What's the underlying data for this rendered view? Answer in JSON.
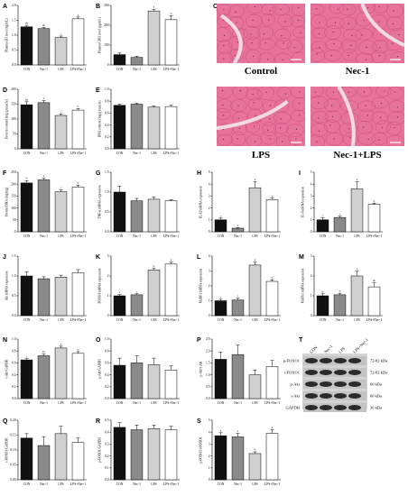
{
  "chart_data": [
    {
      "label": "A",
      "type": "bar",
      "categories": [
        "CON",
        "Nec-1",
        "LPS",
        "LPS+Nec-1"
      ],
      "values": [
        1.28,
        1.22,
        0.92,
        1.55
      ],
      "errors": [
        0.05,
        0.04,
        0.05,
        0.06
      ],
      "sig": [
        "ab",
        "ab",
        "c",
        "a"
      ],
      "ylabel": "Plasma GH level (ng/mL)",
      "ylim": [
        0,
        2
      ],
      "yticks": [
        "0.0",
        "0.5",
        "1.0",
        "1.5",
        "2.0"
      ]
    },
    {
      "label": "B",
      "type": "bar",
      "categories": [
        "CON",
        "Nec-1",
        "LPS",
        "LPS+Nec-1"
      ],
      "values": [
        52,
        38,
        272,
        228
      ],
      "errors": [
        8,
        6,
        9,
        20
      ],
      "sig": [
        "",
        "",
        "a",
        "b"
      ],
      "ylabel": "Plasma CRH level (pg/mL)",
      "ylim": [
        0,
        300
      ],
      "yticks": [
        "0",
        "100",
        "200",
        "300"
      ]
    },
    {
      "label": "D",
      "type": "bar",
      "categories": [
        "CON",
        "Nec-1",
        "LPS",
        "LPS+Nec-1"
      ],
      "values": [
        148,
        155,
        112,
        130
      ],
      "errors": [
        10,
        7,
        5,
        5
      ],
      "sig": [
        "ba",
        "a",
        "c",
        "b"
      ],
      "ylabel": "Protein content (mg/g muscle)",
      "ylim": [
        0,
        200
      ],
      "yticks": [
        "0",
        "50",
        "100",
        "150",
        "200"
      ]
    },
    {
      "label": "E",
      "type": "bar",
      "categories": [
        "CON",
        "Nec-1",
        "LPS",
        "LPS+Nec-1"
      ],
      "values": [
        0.73,
        0.75,
        0.7,
        0.71
      ],
      "errors": [
        0.02,
        0.02,
        0.02,
        0.02
      ],
      "sig": [
        "",
        "",
        "",
        ""
      ],
      "ylabel": "DNA content (mg/g muscle)",
      "ylim": [
        0,
        1
      ],
      "yticks": [
        "0.0",
        "0.2",
        "0.4",
        "0.6",
        "0.8",
        "1.0"
      ]
    },
    {
      "label": "F",
      "type": "bar",
      "categories": [
        "CON",
        "Nec-1",
        "LPS",
        "LPS+Nec-1"
      ],
      "values": [
        205,
        218,
        168,
        188
      ],
      "errors": [
        10,
        7,
        8,
        8
      ],
      "sig": [
        "b",
        "a",
        "c",
        "b"
      ],
      "ylabel": "Protein/DNA (mg/mg)",
      "ylim": [
        0,
        250
      ],
      "yticks": [
        "0",
        "50",
        "100",
        "150",
        "200",
        "250"
      ]
    },
    {
      "label": "G",
      "type": "bar",
      "categories": [
        "CON",
        "Nec-1",
        "LPS",
        "LPS+Nec-1"
      ],
      "values": [
        1.0,
        0.78,
        0.82,
        0.78
      ],
      "errors": [
        0.15,
        0.06,
        0.06,
        0.03
      ],
      "sig": [
        "",
        "",
        "",
        ""
      ],
      "ylabel": "TNF-α mRNA expression",
      "ylim": [
        0,
        1.5
      ],
      "yticks": [
        "0.0",
        "0.5",
        "1.0",
        "1.5"
      ]
    },
    {
      "label": "H",
      "type": "bar",
      "categories": [
        "CON",
        "Nec-1",
        "LPS",
        "LPS+Nec-1"
      ],
      "values": [
        1.0,
        0.3,
        3.7,
        2.7
      ],
      "errors": [
        0.15,
        0.05,
        0.5,
        0.12
      ],
      "sig": [
        "c",
        "d",
        "a",
        "b"
      ],
      "ylabel": "IL-1β mRNA expression",
      "ylim": [
        0,
        5
      ],
      "yticks": [
        "0",
        "1",
        "2",
        "3",
        "4",
        "5"
      ]
    },
    {
      "label": "I",
      "type": "bar",
      "categories": [
        "CON",
        "Nec-1",
        "LPS",
        "LPS+Nec-1"
      ],
      "values": [
        1.0,
        1.2,
        3.6,
        2.3
      ],
      "errors": [
        0.2,
        0.1,
        0.6,
        0.1
      ],
      "sig": [
        "c",
        "c",
        "a",
        "b"
      ],
      "ylabel": "IL-6 mRNA expression",
      "ylim": [
        0,
        5
      ],
      "yticks": [
        "0",
        "1",
        "2",
        "3",
        "4",
        "5"
      ]
    },
    {
      "label": "J",
      "type": "bar",
      "categories": [
        "CON",
        "Nec-1",
        "LPS",
        "LPS+Nec-1"
      ],
      "values": [
        1.0,
        0.93,
        0.97,
        1.08
      ],
      "errors": [
        0.1,
        0.05,
        0.05,
        0.08
      ],
      "sig": [
        "",
        "",
        "",
        ""
      ],
      "ylabel": "Akt mRNA expression",
      "ylim": [
        0,
        1.5
      ],
      "yticks": [
        "0.0",
        "0.5",
        "1.0",
        "1.5"
      ]
    },
    {
      "label": "K",
      "type": "bar",
      "categories": [
        "CON",
        "Nec-1",
        "LPS",
        "LPS+Nec-1"
      ],
      "values": [
        1.0,
        1.05,
        2.3,
        2.6
      ],
      "errors": [
        0.06,
        0.05,
        0.08,
        0.1
      ],
      "sig": [
        "c",
        "c",
        "b",
        "a"
      ],
      "ylabel": "FOXO1 mRNA expression",
      "ylim": [
        0,
        3
      ],
      "yticks": [
        "0",
        "1",
        "2",
        "3"
      ]
    },
    {
      "label": "L",
      "type": "bar",
      "categories": [
        "CON",
        "Nec-1",
        "LPS",
        "LPS+Nec-1"
      ],
      "values": [
        1.0,
        1.05,
        3.4,
        2.3
      ],
      "errors": [
        0.1,
        0.12,
        0.2,
        0.1
      ],
      "sig": [
        "c",
        "c",
        "a",
        "b"
      ],
      "ylabel": "MuRF1 mRNA expression",
      "ylim": [
        0,
        4
      ],
      "yticks": [
        "0",
        "1",
        "2",
        "3",
        "4"
      ]
    },
    {
      "label": "M",
      "type": "bar",
      "categories": [
        "CON",
        "Nec-1",
        "LPS",
        "LPS+Nec-1"
      ],
      "values": [
        1.0,
        1.05,
        2.0,
        1.45
      ],
      "errors": [
        0.1,
        0.08,
        0.25,
        0.2
      ],
      "sig": [
        "b",
        "b",
        "a",
        "ab"
      ],
      "ylabel": "MAFbx mRNA expression",
      "ylim": [
        0,
        3
      ],
      "yticks": [
        "0",
        "1",
        "2",
        "3"
      ]
    },
    {
      "label": "N",
      "type": "bar",
      "categories": [
        "CON",
        "Nec-1",
        "LPS",
        "LPS+Nec-1"
      ],
      "values": [
        0.65,
        0.72,
        0.85,
        0.76
      ],
      "errors": [
        0.02,
        0.03,
        0.03,
        0.03
      ],
      "sig": [
        "c",
        "bc",
        "a",
        "b"
      ],
      "ylabel": "t-Akt/GAPDH",
      "ylim": [
        0,
        1
      ],
      "yticks": [
        "0.0",
        "0.2",
        "0.4",
        "0.6",
        "0.8",
        "1.0"
      ]
    },
    {
      "label": "O",
      "type": "bar",
      "categories": [
        "CON",
        "Nec-1",
        "LPS",
        "LPS+Nec-1"
      ],
      "values": [
        0.56,
        0.6,
        0.57,
        0.48
      ],
      "errors": [
        0.12,
        0.12,
        0.11,
        0.07
      ],
      "sig": [
        "",
        "",
        "",
        ""
      ],
      "ylabel": "p-Akt/GAPDH",
      "ylim": [
        0,
        1
      ],
      "yticks": [
        "0.0",
        "0.2",
        "0.4",
        "0.6",
        "0.8",
        "1.0"
      ]
    },
    {
      "label": "P",
      "type": "bar",
      "categories": [
        "CON",
        "Nec-1",
        "LPS",
        "LPS+Nec-1"
      ],
      "values": [
        1.65,
        1.85,
        1.0,
        1.35
      ],
      "errors": [
        0.3,
        0.4,
        0.2,
        0.25
      ],
      "sig": [
        "",
        "",
        "",
        ""
      ],
      "ylabel": "p-Akt/t-Akt",
      "ylim": [
        0,
        2.5
      ],
      "yticks": [
        "0.0",
        "0.5",
        "1.0",
        "1.5",
        "2.0",
        "2.5"
      ]
    },
    {
      "label": "Q",
      "type": "bar",
      "categories": [
        "CON",
        "Nec-1",
        "LPS",
        "LPS+Nec-1"
      ],
      "values": [
        0.14,
        0.115,
        0.155,
        0.125
      ],
      "errors": [
        0.015,
        0.03,
        0.025,
        0.015
      ],
      "sig": [
        "",
        "",
        "",
        ""
      ],
      "ylabel": "t-FOXO1/GAPDH",
      "ylim": [
        0,
        0.2
      ],
      "yticks": [
        "0.00",
        "0.05",
        "0.10",
        "0.15",
        "0.20"
      ]
    },
    {
      "label": "R",
      "type": "bar",
      "categories": [
        "CON",
        "Nec-1",
        "LPS",
        "LPS+Nec-1"
      ],
      "values": [
        0.44,
        0.42,
        0.43,
        0.42
      ],
      "errors": [
        0.04,
        0.04,
        0.03,
        0.03
      ],
      "sig": [
        "",
        "",
        "",
        ""
      ],
      "ylabel": "p-FOXO1/GAPDH",
      "ylim": [
        0,
        0.5
      ],
      "yticks": [
        "0.0",
        "0.1",
        "0.2",
        "0.3",
        "0.4",
        "0.5"
      ]
    },
    {
      "label": "S",
      "type": "bar",
      "categories": [
        "CON",
        "Nec-1",
        "LPS",
        "LPS+Nec-1"
      ],
      "values": [
        3.7,
        3.6,
        2.2,
        3.9
      ],
      "errors": [
        0.25,
        0.3,
        0.15,
        0.3
      ],
      "sig": [
        "a",
        "a",
        "b",
        "a"
      ],
      "ylabel": "p-FOXO1/t-FOXO1",
      "ylim": [
        0,
        5
      ],
      "yticks": [
        "0",
        "1",
        "2",
        "3",
        "4",
        "5"
      ]
    }
  ],
  "micrographs": {
    "label": "C",
    "panels": [
      {
        "caption": "Control"
      },
      {
        "caption": "Nec-1"
      },
      {
        "caption": "LPS"
      },
      {
        "caption": "Nec-1+LPS"
      }
    ]
  },
  "western_blot": {
    "label": "T",
    "lanes": [
      "CON",
      "Nec-1",
      "LPS",
      "LPS+Nec-1"
    ],
    "rows": [
      {
        "protein": "p-FOXO1",
        "kda": "72-82 kDa"
      },
      {
        "protein": "t-FOXO1",
        "kda": "72-82 kDa"
      },
      {
        "protein": "p-Akt",
        "kda": "60 kDa"
      },
      {
        "protein": "t-Akt",
        "kda": "60 kDa"
      },
      {
        "protein": "GAPDH",
        "kda": "36 kDa"
      }
    ]
  },
  "colors": {
    "con": "#111111",
    "nec": "#8a8a8a",
    "lps": "#d0d0d0",
    "lpsnec": "#ffffff",
    "tissue": "#e7739a",
    "tissue_dark": "#c94e7d",
    "gap": "#f3dbe4"
  }
}
